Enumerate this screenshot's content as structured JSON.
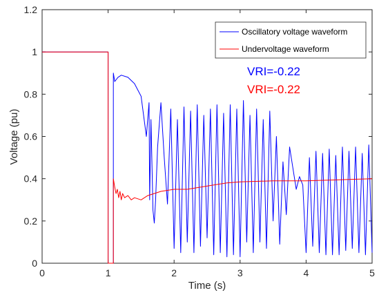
{
  "chart_data": {
    "type": "line",
    "xlabel": "Time (s)",
    "ylabel": "Voltage (pu)",
    "xlim": [
      0,
      5
    ],
    "ylim": [
      0,
      1.2
    ],
    "x_ticks": [
      0,
      1,
      2,
      3,
      4,
      5
    ],
    "y_ticks": [
      0,
      0.2,
      0.4,
      0.6,
      0.8,
      1,
      1.2
    ],
    "x_tick_labels": [
      "0",
      "1",
      "2",
      "3",
      "4",
      "5"
    ],
    "y_tick_labels": [
      "0",
      "0.2",
      "0.4",
      "0.6",
      "0.8",
      "1",
      "1.2"
    ],
    "grid": false,
    "legend_position": "top-right",
    "series": [
      {
        "name": "Oscillatory voltage waveform",
        "color": "#0000ff",
        "x": [
          0,
          1.0,
          1.0,
          1.08,
          1.08,
          1.1,
          1.15,
          1.2,
          1.3,
          1.4,
          1.5,
          1.58,
          1.62,
          1.63,
          1.65,
          1.68,
          1.7,
          1.72,
          1.75,
          1.8,
          1.85,
          1.9,
          1.95,
          2.0,
          2.05,
          2.1,
          2.15,
          2.2,
          2.25,
          2.3,
          2.35,
          2.4,
          2.45,
          2.5,
          2.55,
          2.6,
          2.65,
          2.7,
          2.75,
          2.8,
          2.85,
          2.9,
          2.95,
          3.0,
          3.05,
          3.1,
          3.15,
          3.2,
          3.25,
          3.3,
          3.35,
          3.4,
          3.45,
          3.5,
          3.55,
          3.6,
          3.65,
          3.7,
          3.75,
          3.8,
          3.85,
          3.9,
          3.95,
          4.0,
          4.05,
          4.1,
          4.15,
          4.2,
          4.25,
          4.3,
          4.35,
          4.4,
          4.45,
          4.5,
          4.55,
          4.6,
          4.65,
          4.7,
          4.75,
          4.8,
          4.85,
          4.9,
          4.95,
          5.0
        ],
        "y": [
          1.0,
          1.0,
          0.0,
          0.0,
          0.9,
          0.86,
          0.88,
          0.89,
          0.88,
          0.85,
          0.79,
          0.6,
          0.76,
          0.3,
          0.68,
          0.25,
          0.19,
          0.3,
          0.55,
          0.76,
          0.5,
          0.28,
          0.73,
          0.07,
          0.68,
          0.05,
          0.74,
          0.1,
          0.72,
          0.05,
          0.75,
          0.08,
          0.7,
          0.12,
          0.73,
          0.04,
          0.75,
          0.05,
          0.71,
          0.03,
          0.75,
          0.04,
          0.73,
          0.03,
          0.77,
          0.1,
          0.7,
          0.05,
          0.73,
          0.1,
          0.68,
          0.07,
          0.72,
          0.2,
          0.6,
          0.09,
          0.48,
          0.23,
          0.55,
          0.45,
          0.35,
          0.41,
          0.37,
          0.05,
          0.5,
          0.08,
          0.53,
          0.05,
          0.52,
          0.04,
          0.54,
          0.04,
          0.51,
          0.04,
          0.55,
          0.06,
          0.53,
          0.07,
          0.55,
          0.05,
          0.52,
          0.04,
          0.56,
          0.05
        ]
      },
      {
        "name": "Undervoltage waveform",
        "color": "#ff0000",
        "x": [
          0,
          1.0,
          1.0,
          1.08,
          1.08,
          1.1,
          1.12,
          1.14,
          1.16,
          1.18,
          1.2,
          1.22,
          1.25,
          1.3,
          1.35,
          1.4,
          1.5,
          1.6,
          1.7,
          1.8,
          1.9,
          2.0,
          2.2,
          2.4,
          2.6,
          2.8,
          3.0,
          3.5,
          4.0,
          4.5,
          5.0
        ],
        "y": [
          1.0,
          1.0,
          0.0,
          0.0,
          0.4,
          0.36,
          0.33,
          0.35,
          0.31,
          0.34,
          0.3,
          0.33,
          0.31,
          0.32,
          0.3,
          0.31,
          0.3,
          0.32,
          0.33,
          0.34,
          0.345,
          0.35,
          0.35,
          0.36,
          0.37,
          0.38,
          0.385,
          0.39,
          0.39,
          0.395,
          0.4
        ]
      }
    ],
    "annotations": [
      {
        "text": "VRI=-0.22",
        "color": "#0000ff"
      },
      {
        "text": "VRI=-0.22",
        "color": "#ff0000"
      }
    ]
  }
}
